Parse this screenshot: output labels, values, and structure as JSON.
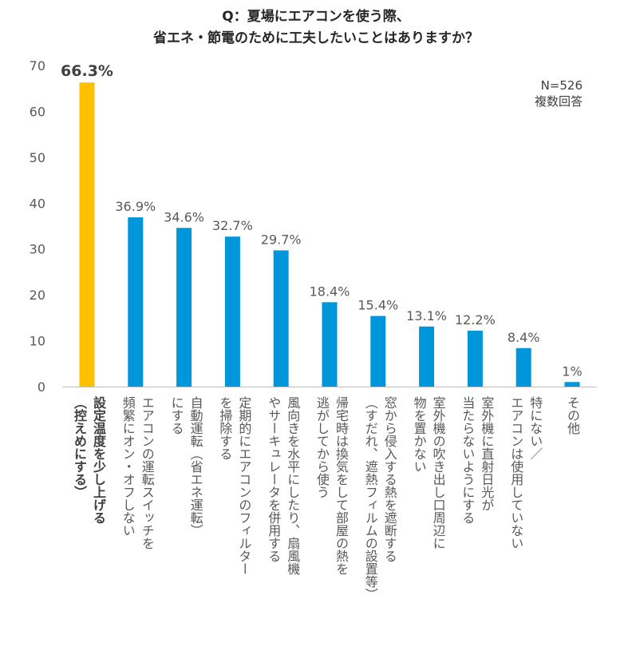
{
  "chart_data": {
    "type": "bar",
    "title": [
      "Q：夏場にエアコンを使う際、",
      "省エネ・節電のために工夫したいことはありますか？"
    ],
    "note": [
      "N=526",
      "複数回答"
    ],
    "ylim": [
      0,
      70
    ],
    "yticks": [
      "0",
      "10",
      "20",
      "30",
      "40",
      "50",
      "60",
      "70"
    ],
    "grid": false,
    "categories": [
      [
        "設定温度を少し上げる",
        "（控えめにする）"
      ],
      [
        "エアコンの運転スイッチを",
        "頻繁にオン・オフしない"
      ],
      [
        "自動運転（省エネ運転）",
        "にする"
      ],
      [
        "定期的にエアコンのフィルター",
        "を掃除する"
      ],
      [
        "風向きを水平にしたり、扇風機",
        "やサーキュレータを併用する"
      ],
      [
        "帰宅時は換気をして部屋の熱を",
        "逃がしてから使う"
      ],
      [
        "窓から侵入する熱を遮断する",
        "（すだれ、遮熱フィルムの設置等）"
      ],
      [
        "室外機の吹き出し口周辺に",
        "物を置かない"
      ],
      [
        "室外機に直射日光が",
        "当たらないようにする"
      ],
      [
        "特にない／",
        "エアコンは使用していない"
      ],
      [
        "その他"
      ]
    ],
    "values": [
      66.3,
      36.9,
      34.6,
      32.7,
      29.7,
      18.4,
      15.4,
      13.1,
      12.2,
      8.4,
      1
    ],
    "labels": [
      "66.3%",
      "36.9%",
      "34.6%",
      "32.7%",
      "29.7%",
      "18.4%",
      "15.4%",
      "13.1%",
      "12.2%",
      "8.4%",
      "1%"
    ],
    "highlight_index": 0,
    "colors": {
      "highlight": "#FFC000",
      "bar": "#0096DC",
      "axis": "#BFBFBF"
    }
  }
}
